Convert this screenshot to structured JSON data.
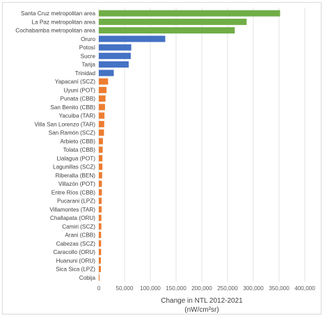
{
  "chart_data": {
    "type": "bar",
    "orientation": "horizontal",
    "xlabel": [
      "Change in NTL 2012-2021",
      "(nW/cm²sr)"
    ],
    "xlim": [
      0,
      400000
    ],
    "xticks": [
      "0",
      "50,000",
      "100,000",
      "150,000",
      "200,000",
      "250,000",
      "300,000",
      "350,000",
      "400,000"
    ],
    "grid": true,
    "legend": "none",
    "colors": {
      "green": "#70ad47",
      "blue": "#4472c4",
      "orange": "#ed7d31"
    },
    "categories": [
      "Santa Cruz metropolitan area",
      "La Paz metropolitan area",
      "Cochabamba metropolitan area",
      "Oruro",
      "Potosí",
      "Sucre",
      "Tarija",
      "Trinidad",
      "Yapacaní (SCZ)",
      "Uyuni (POT)",
      "Punata (CBB)",
      "San Benito (CBB)",
      "Yacuiba (TAR)",
      "Villa San Lorenzo (TAR)",
      "San Ramón (SCZ)",
      "Arbieto (CBB)",
      "Tolata (CBB)",
      "Llalagua (POT)",
      "Lagunillas (SCZ)",
      "Riberalta (BEN)",
      "Villazón (POT)",
      "Entre Ríos (CBB)",
      "Pucarani (LPZ)",
      "Villamontes (TAR)",
      "Challapata (ORU)",
      "Camiri (SCZ)",
      "Arani (CBB)",
      "Cabezas (SCZ)",
      "Caracollo (ORU)",
      "Huanuni (ORU)",
      "Sica Sica (LPZ)",
      "Cobija"
    ],
    "values": [
      352000,
      287000,
      264000,
      129000,
      63000,
      62000,
      58000,
      29000,
      18000,
      15000,
      13000,
      12000,
      11000,
      10500,
      10000,
      8000,
      7500,
      7000,
      7000,
      6500,
      6000,
      6000,
      5500,
      5500,
      5000,
      5000,
      4500,
      4500,
      4500,
      4000,
      4000,
      1000
    ],
    "bar_colors": [
      "green",
      "green",
      "green",
      "blue",
      "blue",
      "blue",
      "blue",
      "blue",
      "orange",
      "orange",
      "orange",
      "orange",
      "orange",
      "orange",
      "orange",
      "orange",
      "orange",
      "orange",
      "orange",
      "orange",
      "orange",
      "orange",
      "orange",
      "orange",
      "orange",
      "orange",
      "orange",
      "orange",
      "orange",
      "orange",
      "orange",
      "orange"
    ]
  }
}
